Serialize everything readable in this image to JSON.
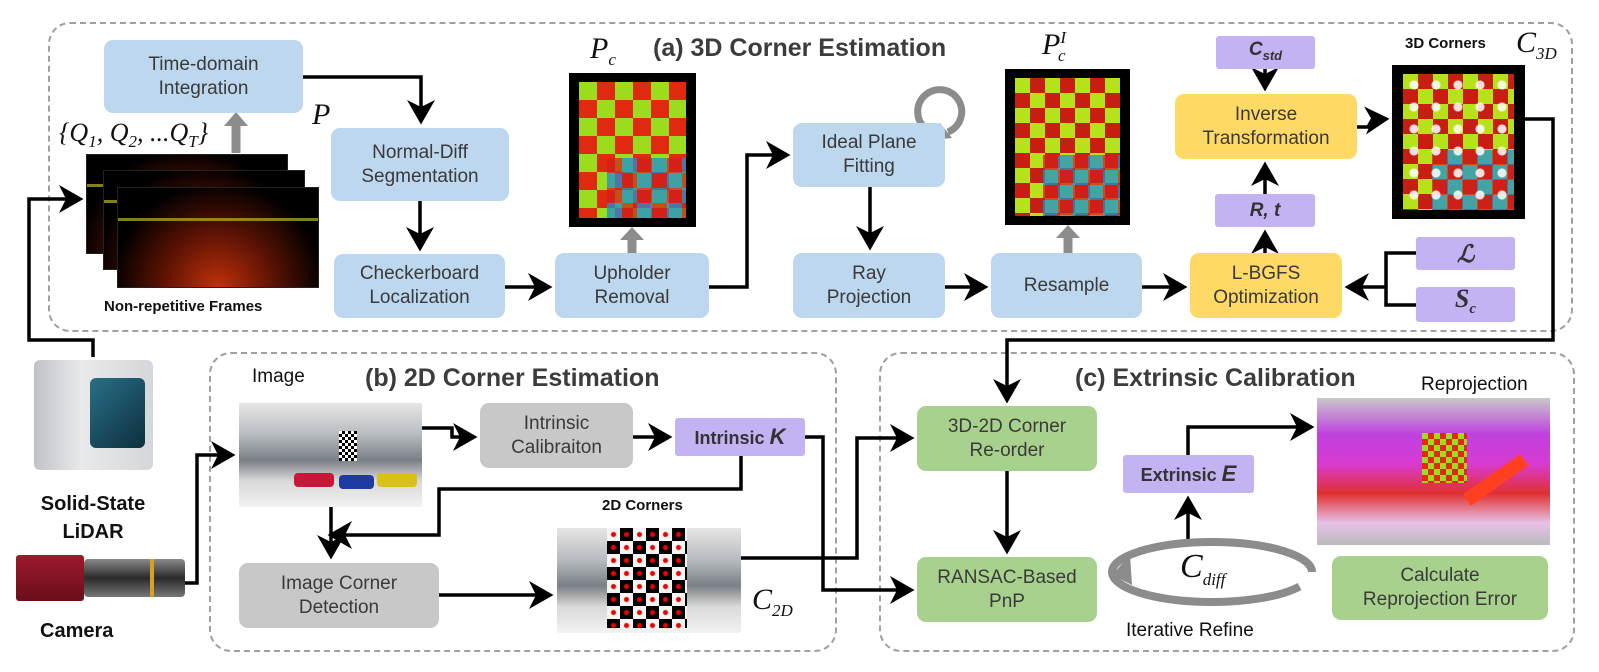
{
  "panels": {
    "a": {
      "title": "(a) 3D Corner Estimation"
    },
    "b": {
      "title": "(b) 2D Corner Estimation"
    },
    "c": {
      "title": "(c)  Extrinsic Calibration"
    }
  },
  "sensors": {
    "lidar": {
      "label_lines": [
        "Solid-State",
        "LiDAR"
      ]
    },
    "camera": {
      "label": "Camera"
    }
  },
  "stage_a": {
    "frames_label": "Non-repetitive Frames",
    "frames_math": "{Q1, Q2, ...QT}",
    "time_domain": [
      "Time-domain",
      "Integration"
    ],
    "p_label": "P",
    "normal_diff": [
      "Normal-Diff",
      "Segmentation"
    ],
    "checkerboard": [
      "Checkerboard",
      "Localization"
    ],
    "upholder": [
      "Upholder",
      "Removal"
    ],
    "pc_label": {
      "base": "P",
      "sub": "c"
    },
    "ideal_plane": [
      "Ideal Plane",
      "Fitting"
    ],
    "ray_projection": [
      "Ray",
      "Projection"
    ],
    "resample": "Resample",
    "pci_label": {
      "base": "P",
      "sub": "c",
      "sup": "I"
    },
    "c_std": {
      "base": "C",
      "sub": "std"
    },
    "inverse": [
      "Inverse",
      "Transformation"
    ],
    "rt": "R, t",
    "lbgfs": [
      "L-BGFS",
      "Optimization"
    ],
    "loss": "ℒ",
    "sc": {
      "base": "S",
      "sub": "c"
    },
    "corners3d_label": "3D Corners",
    "c3d": {
      "base": "C",
      "sub": "3D"
    }
  },
  "stage_b": {
    "image_label": "Image",
    "intrinsic_cal": [
      "Intrinsic",
      "Calibraiton"
    ],
    "intrinsic_k": {
      "text": "Intrinsic ",
      "sym": "K"
    },
    "corner_detection": [
      "Image Corner",
      "Detection"
    ],
    "corners2d_label": "2D Corners",
    "c2d": {
      "base": "C",
      "sub": "2D"
    }
  },
  "stage_c": {
    "reorder": [
      "3D-2D Corner",
      "Re-order"
    ],
    "ransac": [
      "RANSAC-Based",
      "PnP"
    ],
    "extrinsic_e": {
      "text": "Extrinsic ",
      "sym": "E"
    },
    "c_diff": {
      "base": "C",
      "sub": "diff"
    },
    "iterative": "Iterative Refine",
    "reprojection_label": "Reprojection",
    "calc_error": [
      "Calculate",
      "Reprojection Error"
    ]
  },
  "colors": {
    "process_blue": "#bdd7ee",
    "process_gray": "#c8c8c8",
    "optimization_yellow": "#ffd966",
    "extrinsic_green": "#a9d18e",
    "variable_purple": "#c3b3f3",
    "arrow": "#000000",
    "data_flow_gray": "#8c8c8c"
  }
}
